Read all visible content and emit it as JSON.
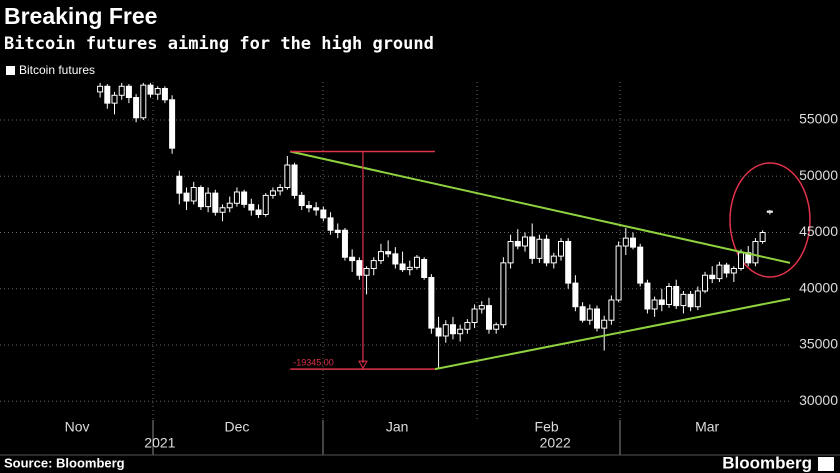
{
  "chart_data": {
    "type": "candlestick",
    "title": "Breaking Free",
    "subtitle": "Bitcoin futures aiming for the high ground",
    "legend": "Bitcoin futures",
    "source": "Source: Bloomberg",
    "brand": "Bloomberg",
    "color": "#ffffff",
    "grid": true,
    "xlim": [
      -13.9,
      95.8
    ],
    "ylim": [
      28330,
      58380
    ],
    "yticks": [
      30000,
      35000,
      40000,
      45000,
      50000,
      55000
    ],
    "xticks": [
      {
        "value": -3.2,
        "label": "Nov"
      },
      {
        "value": 19,
        "label": "Dec"
      },
      {
        "value": 41.25,
        "label": "Jan"
      },
      {
        "value": 62,
        "label": "Feb"
      },
      {
        "value": 84.3,
        "label": "Mar"
      }
    ],
    "year_labels": [
      {
        "value": 8.3,
        "label": "2021"
      },
      {
        "value": 63.2,
        "label": "2022"
      }
    ],
    "trendlines": [
      {
        "color": "#8fd13f",
        "start": [
          26.4,
          52200
        ],
        "end": [
          95.8,
          42300
        ]
      },
      {
        "color": "#8fd13f",
        "start": [
          46.5,
          32850
        ],
        "end": [
          95.8,
          39100
        ]
      }
    ],
    "measure": {
      "color": "#e0324a",
      "x": 36.5,
      "from": 26.4,
      "to": 46.5,
      "high": 52200,
      "low": 32855,
      "label": "-19345.00"
    },
    "ohlc": [
      [
        57500,
        58300,
        57000,
        58000
      ],
      [
        58000,
        58200,
        56000,
        56500
      ],
      [
        56500,
        57500,
        55500,
        57200
      ],
      [
        57200,
        58300,
        56800,
        58000
      ],
      [
        58000,
        58200,
        56500,
        57000
      ],
      [
        57000,
        57300,
        54800,
        55200
      ],
      [
        55200,
        58300,
        55000,
        58100
      ],
      [
        58100,
        58300,
        57000,
        57300
      ],
      [
        57300,
        58000,
        56800,
        57800
      ],
      [
        57800,
        58000,
        56500,
        56800
      ],
      [
        56800,
        57200,
        52000,
        52500
      ],
      [
        50000,
        50500,
        47500,
        48500
      ],
      [
        48500,
        49000,
        47000,
        47800
      ],
      [
        47800,
        49500,
        47500,
        49000
      ],
      [
        49000,
        49200,
        47000,
        47300
      ],
      [
        47300,
        49000,
        46800,
        48500
      ],
      [
        48500,
        48800,
        46500,
        46800
      ],
      [
        46800,
        47500,
        46000,
        47200
      ],
      [
        47200,
        48200,
        46800,
        47600
      ],
      [
        47600,
        49000,
        47300,
        48600
      ],
      [
        48600,
        48800,
        47200,
        47500
      ],
      [
        47500,
        48000,
        46500,
        47000
      ],
      [
        47000,
        47500,
        46300,
        46600
      ],
      [
        46600,
        48500,
        46400,
        48300
      ],
      [
        48300,
        49000,
        48000,
        48700
      ],
      [
        48700,
        49300,
        48300,
        49000
      ],
      [
        49000,
        51800,
        48800,
        51000
      ],
      [
        51000,
        51200,
        48000,
        48300
      ],
      [
        48300,
        48600,
        47000,
        47400
      ],
      [
        47400,
        47800,
        46800,
        47200
      ],
      [
        47200,
        47700,
        46500,
        47000
      ],
      [
        47000,
        47300,
        46000,
        46300
      ],
      [
        46300,
        46800,
        44800,
        45200
      ],
      [
        45200,
        45800,
        44500,
        45000
      ],
      [
        45200,
        45400,
        42500,
        42800
      ],
      [
        42800,
        43500,
        41500,
        42500
      ],
      [
        42500,
        42800,
        40800,
        41200
      ],
      [
        41200,
        42000,
        39500,
        41800
      ],
      [
        41800,
        42800,
        41200,
        42500
      ],
      [
        42500,
        44000,
        42200,
        43300
      ],
      [
        43300,
        44300,
        42800,
        43100
      ],
      [
        43100,
        43700,
        41800,
        42200
      ],
      [
        42200,
        43300,
        41500,
        41700
      ],
      [
        41700,
        42500,
        41200,
        41900
      ],
      [
        41900,
        43000,
        41700,
        42800
      ],
      [
        42600,
        42800,
        40800,
        41000
      ],
      [
        41000,
        41300,
        36000,
        36500
      ],
      [
        36500,
        37500,
        32900,
        35800
      ],
      [
        35800,
        37200,
        35200,
        36800
      ],
      [
        36800,
        37500,
        35500,
        36000
      ],
      [
        36000,
        36800,
        35300,
        36400
      ],
      [
        36400,
        37300,
        36000,
        37000
      ],
      [
        37000,
        38600,
        36500,
        38200
      ],
      [
        38200,
        38900,
        37800,
        38500
      ],
      [
        38500,
        39200,
        36000,
        36400
      ],
      [
        36400,
        37000,
        36000,
        36800
      ],
      [
        36800,
        42800,
        36500,
        42300
      ],
      [
        42300,
        44800,
        41800,
        44200
      ],
      [
        44200,
        45300,
        43500,
        43800
      ],
      [
        43800,
        45000,
        43300,
        44600
      ],
      [
        44600,
        45800,
        42200,
        42700
      ],
      [
        42700,
        44800,
        42300,
        44400
      ],
      [
        44400,
        44800,
        42000,
        42300
      ],
      [
        42300,
        43200,
        41800,
        42900
      ],
      [
        42900,
        44500,
        42500,
        44200
      ],
      [
        44200,
        44500,
        40000,
        40500
      ],
      [
        40500,
        41200,
        38000,
        38400
      ],
      [
        38400,
        38800,
        37000,
        37200
      ],
      [
        37200,
        38600,
        36800,
        38200
      ],
      [
        38200,
        38500,
        36200,
        36500
      ],
      [
        36500,
        37600,
        34500,
        37200
      ],
      [
        37200,
        39400,
        36800,
        39000
      ],
      [
        39000,
        44200,
        38800,
        43800
      ],
      [
        43800,
        45400,
        43000,
        44500
      ],
      [
        44500,
        45000,
        43500,
        43700
      ],
      [
        43700,
        44000,
        40200,
        40500
      ],
      [
        40500,
        40800,
        37800,
        38200
      ],
      [
        38200,
        39300,
        37500,
        39000
      ],
      [
        39000,
        40000,
        38000,
        38600
      ],
      [
        38600,
        40500,
        38300,
        40200
      ],
      [
        40200,
        40800,
        38200,
        38500
      ],
      [
        38500,
        39800,
        37800,
        39500
      ],
      [
        39500,
        39800,
        38000,
        38400
      ],
      [
        38400,
        40200,
        38100,
        39800
      ],
      [
        39800,
        41500,
        39600,
        41200
      ],
      [
        41200,
        42000,
        40500,
        40900
      ],
      [
        40900,
        42400,
        40600,
        42100
      ],
      [
        42100,
        42300,
        41000,
        41400
      ],
      [
        41400,
        42000,
        40600,
        41800
      ],
      [
        41800,
        43500,
        41600,
        43200
      ],
      [
        43200,
        43800,
        42000,
        42300
      ],
      [
        42300,
        44500,
        42000,
        44200
      ],
      [
        44200,
        45200,
        44000,
        45000
      ],
      [
        46800,
        47000,
        46600,
        46900
      ]
    ]
  }
}
